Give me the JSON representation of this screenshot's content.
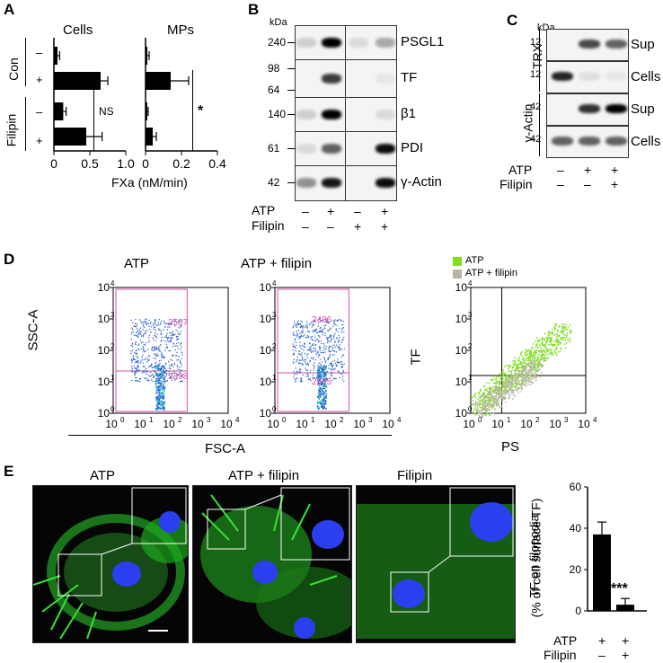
{
  "panel_letters": {
    "a": "A",
    "b": "B",
    "c": "C",
    "d": "D",
    "e": "E"
  },
  "panel_a": {
    "cells_title": "Cells",
    "mps_title": "MPs",
    "group_con": "Con",
    "group_filipin": "Filipin",
    "minus": "–",
    "plus": "+",
    "ns_label": "NS",
    "sig_label": "*",
    "xlabel": "FXa (nM/min)",
    "cells_ticks": [
      "0",
      "0.5",
      "1.0"
    ],
    "mps_ticks": [
      "0",
      "0.2",
      "0.4"
    ]
  },
  "panel_b": {
    "kda": "kDa",
    "rows": [
      {
        "name": "PSGL1",
        "mw": [
          "240"
        ]
      },
      {
        "name": "TF",
        "mw": [
          "98",
          "64"
        ]
      },
      {
        "name": "β1",
        "mw": [
          "140"
        ]
      },
      {
        "name": "PDI",
        "mw": [
          "61"
        ]
      },
      {
        "name": "γ-Actin",
        "mw": [
          "42"
        ]
      }
    ],
    "atp_label": "ATP",
    "filipin_label": "Filipin",
    "atp_signs": [
      "–",
      "+",
      "–",
      "+"
    ],
    "filipin_signs": [
      "–",
      "–",
      "+",
      "+"
    ]
  },
  "panel_c": {
    "kda": "kDa",
    "group_trx": "TRX",
    "group_actin": "γ-Actin",
    "rows": [
      {
        "name": "Sup",
        "mw": "12"
      },
      {
        "name": "Cells",
        "mw": "12"
      },
      {
        "name": "Sup",
        "mw": "42"
      },
      {
        "name": "Cells",
        "mw": "42"
      }
    ],
    "atp_label": "ATP",
    "filipin_label": "Filipin",
    "atp_signs": [
      "–",
      "+",
      "+"
    ],
    "filipin_signs": [
      "–",
      "–",
      "+"
    ]
  },
  "panel_d": {
    "plot1_title": "ATP",
    "plot2_title": "ATP + filipin",
    "ylabel_ssc": "SSC-A",
    "xlabel_fsc": "FSC-A",
    "ylabel_tf": "TF",
    "xlabel_ps": "PS",
    "plot1_gate_upper": "3587",
    "plot1_gate_lower": "3398",
    "plot2_gate_upper": "2486",
    "plot2_gate_lower": "2995",
    "legend_atp": "ATP",
    "legend_atp_filipin": "ATP + filipin",
    "colors": {
      "gate": "#d64fa8",
      "atp": "#7fe020",
      "atp_filipin": "#b9b4a6",
      "dots": "#2a5fd0"
    }
  },
  "panel_e": {
    "img1_title": "ATP",
    "img2_title": "ATP + filipin",
    "img3_title": "Filipin",
    "ylabel": "TF on filopodia",
    "ylabel2": "(% of cell surface TF)",
    "sig_label": "***",
    "atp_label": "ATP",
    "filipin_label": "Filipin",
    "atp_signs": [
      "+",
      "+"
    ],
    "filipin_signs": [
      "–",
      "+"
    ],
    "yticks": [
      "0",
      "20",
      "40",
      "60"
    ]
  },
  "chart_data": [
    {
      "type": "bar",
      "title": "Cells",
      "xlabel": "FXa (nM/min)",
      "categories": [
        "Con –",
        "Con +",
        "Filipin –",
        "Filipin +"
      ],
      "values": [
        0.05,
        0.65,
        0.13,
        0.45
      ],
      "errors": [
        0.03,
        0.1,
        0.04,
        0.22
      ],
      "xlim": [
        0,
        1.0
      ]
    },
    {
      "type": "bar",
      "title": "MPs",
      "xlabel": "FXa (nM/min)",
      "categories": [
        "Con –",
        "Con +",
        "Filipin –",
        "Filipin +"
      ],
      "values": [
        0.01,
        0.14,
        0.01,
        0.04
      ],
      "errors": [
        0.01,
        0.1,
        0.005,
        0.02
      ],
      "xlim": [
        0,
        0.4
      ]
    },
    {
      "type": "bar",
      "ylabel": "TF on filopodia (% of cell surface TF)",
      "categories": [
        "ATP",
        "ATP + filipin"
      ],
      "values": [
        37,
        3
      ],
      "errors": [
        6,
        3
      ],
      "ylim": [
        0,
        60
      ]
    }
  ]
}
